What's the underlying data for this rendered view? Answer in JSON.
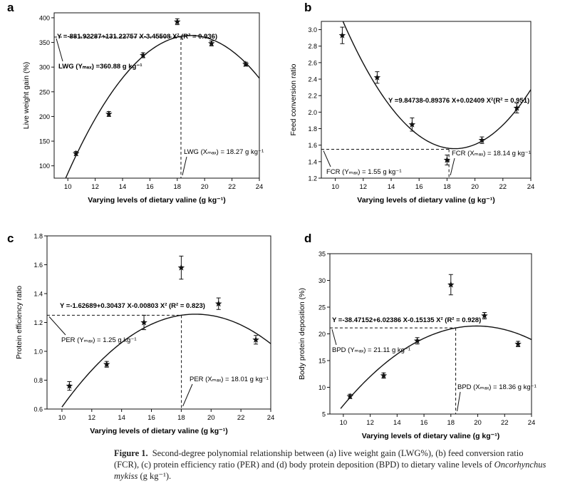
{
  "chart_data": [
    {
      "panel": "a",
      "type": "scatter",
      "xlabel": "Varying levels of dietary valine (g kg⁻¹)",
      "ylabel": "Live weight gain (%)",
      "xlim": [
        9,
        24
      ],
      "ylim": [
        75,
        410
      ],
      "xticks": [
        10,
        12,
        14,
        16,
        18,
        20,
        22,
        24
      ],
      "yticks": [
        100,
        150,
        200,
        250,
        300,
        350,
        400
      ],
      "points": [
        {
          "x": 10.6,
          "y": 125,
          "err": 4
        },
        {
          "x": 13.0,
          "y": 205,
          "err": 5
        },
        {
          "x": 15.5,
          "y": 324,
          "err": 5
        },
        {
          "x": 18.0,
          "y": 392,
          "err": 6
        },
        {
          "x": 20.5,
          "y": 348,
          "err": 5
        },
        {
          "x": 23.0,
          "y": 306,
          "err": 4
        }
      ],
      "fit": {
        "c0": -881.92287,
        "c1": 131.22757,
        "c2": -3.45508,
        "x_from": 9.8,
        "x_to": 24
      },
      "equation": "Y =-881.92287+131.22757 X-3.45508 X² (R² = 0.936)",
      "optimum": {
        "x": 18.27,
        "y": 360.88
      },
      "optimum_y_label": "LWG (Yₘₐₓ) =360.88 g kg⁻¹",
      "optimum_x_label": "LWG (Xₘₐₓ) = 18.27 g kg⁻¹",
      "grid": false
    },
    {
      "panel": "b",
      "type": "scatter",
      "xlabel": "Varying levels of dietary valine (g kg⁻¹)",
      "ylabel": "Feed conversion ratio",
      "xlim": [
        9,
        24
      ],
      "ylim": [
        1.2,
        3.1
      ],
      "xticks": [
        10,
        12,
        14,
        16,
        18,
        20,
        22,
        24
      ],
      "yticks": [
        1.2,
        1.4,
        1.6,
        1.8,
        2.0,
        2.2,
        2.4,
        2.6,
        2.8,
        3.0
      ],
      "points": [
        {
          "x": 10.5,
          "y": 2.93,
          "err": 0.1
        },
        {
          "x": 13.0,
          "y": 2.42,
          "err": 0.07
        },
        {
          "x": 15.5,
          "y": 1.85,
          "err": 0.08
        },
        {
          "x": 18.0,
          "y": 1.42,
          "err": 0.06
        },
        {
          "x": 20.5,
          "y": 1.66,
          "err": 0.04
        },
        {
          "x": 23.0,
          "y": 2.05,
          "err": 0.06
        }
      ],
      "fit": {
        "c0": 9.84738,
        "c1": -0.89376,
        "c2": 0.02409,
        "x_from": 10.5,
        "x_to": 24
      },
      "equation": "Y =9.84738-0.89376 X+0.02409 X²(R² = 0.951)",
      "optimum": {
        "x": 18.14,
        "y": 1.55
      },
      "optimum_y_label": "FCR (Yₘₐₓ) = 1.55 g kg⁻¹",
      "optimum_x_label": "FCR (Xₘₐₓ) = 18.14 g kg⁻¹",
      "grid": false
    },
    {
      "panel": "c",
      "type": "scatter",
      "xlabel": "Varying levels of dietary valine (g kg⁻¹)",
      "ylabel": "Protein efficiency ratio",
      "xlim": [
        9,
        24
      ],
      "ylim": [
        0.6,
        1.8
      ],
      "xticks": [
        10,
        12,
        14,
        16,
        18,
        20,
        22,
        24
      ],
      "yticks": [
        0.6,
        0.8,
        1.0,
        1.2,
        1.4,
        1.6,
        1.8
      ],
      "points": [
        {
          "x": 10.5,
          "y": 0.76,
          "err": 0.03
        },
        {
          "x": 13.0,
          "y": 0.91,
          "err": 0.02
        },
        {
          "x": 15.5,
          "y": 1.2,
          "err": 0.05
        },
        {
          "x": 18.0,
          "y": 1.58,
          "err": 0.08
        },
        {
          "x": 20.5,
          "y": 1.33,
          "err": 0.04
        },
        {
          "x": 23.0,
          "y": 1.08,
          "err": 0.03
        }
      ],
      "fit": {
        "c0": -1.62689,
        "c1": 0.30437,
        "c2": -0.00803,
        "x_from": 10.0,
        "x_to": 24
      },
      "equation": "Y =-1.62689+0.30437 X-0.00803 X² (R² = 0.823)",
      "optimum": {
        "x": 18.01,
        "y": 1.25
      },
      "optimum_y_label": "PER (Yₘₐₓ) = 1.25 g kg⁻¹",
      "optimum_x_label": "PER (Xₘₐₓ) = 18.01 g kg⁻¹",
      "grid": false
    },
    {
      "panel": "d",
      "type": "scatter",
      "xlabel": "Varying levels of dietary valine (g kg⁻¹)",
      "ylabel": "Body protein deposition (%)",
      "xlim": [
        9,
        24
      ],
      "ylim": [
        5,
        35
      ],
      "xticks": [
        10,
        12,
        14,
        16,
        18,
        20,
        22,
        24
      ],
      "yticks": [
        5,
        10,
        15,
        20,
        25,
        30,
        35
      ],
      "points": [
        {
          "x": 10.5,
          "y": 8.3,
          "err": 0.4
        },
        {
          "x": 13.0,
          "y": 12.2,
          "err": 0.5
        },
        {
          "x": 15.5,
          "y": 18.7,
          "err": 0.6
        },
        {
          "x": 18.0,
          "y": 29.2,
          "err": 1.9
        },
        {
          "x": 20.5,
          "y": 23.4,
          "err": 0.6
        },
        {
          "x": 23.0,
          "y": 18.1,
          "err": 0.5
        }
      ],
      "fit": {
        "c0": -38.47152,
        "c1": 6.02386,
        "c2": -0.15135,
        "x_from": 9.8,
        "x_to": 24
      },
      "equation": "Y =-38.47152+6.02386 X-0.15135 X² (R² = 0.928)",
      "optimum": {
        "x": 18.36,
        "y": 21.11
      },
      "optimum_y_label": "BPD (Yₘₐₓ) = 21.11 g kg⁻¹",
      "optimum_x_label": "BPD (Xₘₐₓ) = 18.36 g kg⁻¹",
      "grid": false
    }
  ],
  "caption": {
    "label": "Figure 1.",
    "text": "Second-degree polynomial relationship between (a) live weight gain (LWG%), (b) feed conversion ratio (FCR), (c) protein efficiency ratio (PER) and (d) body protein deposition (BPD) to dietary valine levels of",
    "species": "Oncorhynchus mykiss",
    "tail": " (g kg⁻¹)."
  }
}
